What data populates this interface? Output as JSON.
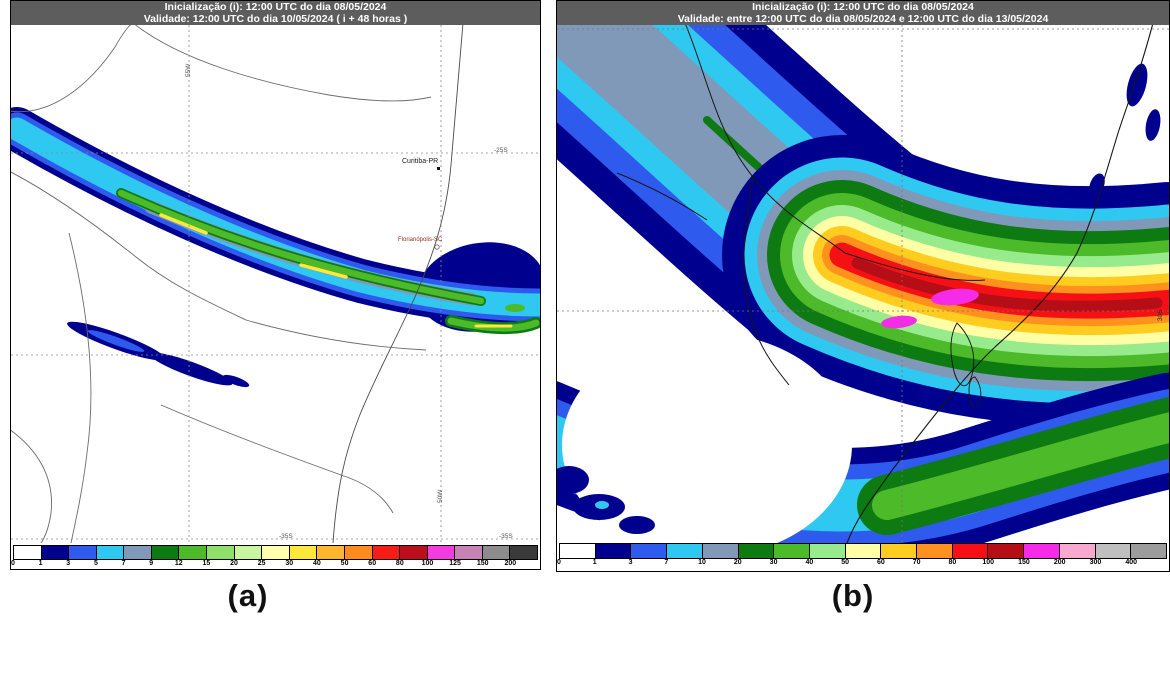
{
  "figure": {
    "panels": [
      {
        "id": "a",
        "caption": "(a)",
        "header": {
          "line1": "Inicialização (i): 12:00 UTC do dia 08/05/2024",
          "line2": "Validade: 12:00 UTC do dia 10/05/2024 ( i + 48 horas )"
        },
        "map_labels": {
          "city_curitiba": "Curitiba-PR",
          "city_florianopolis": "Florianópolis-SC",
          "lat_25s": "-25S",
          "lat_35s_left": "-35S",
          "lat_35s_right": "-35S",
          "lon_55w": "55W",
          "lon_50w": "50W"
        },
        "colorbar": {
          "ticks": [
            "0",
            "1",
            "3",
            "5",
            "7",
            "9",
            "12",
            "15",
            "20",
            "25",
            "30",
            "40",
            "50",
            "60",
            "80",
            "100",
            "125",
            "150",
            "200"
          ],
          "colors": [
            "#FFFFFF",
            "#00008F",
            "#2E5AEE",
            "#2FC8F0",
            "#8099B8",
            "#0E7A12",
            "#4DBA2A",
            "#8FE06A",
            "#C8F59E",
            "#FFFFB0",
            "#FFE83C",
            "#FFB52D",
            "#FF8A1E",
            "#F51D16",
            "#BC0F1D",
            "#F23CE0",
            "#C583B5",
            "#8C8C8C",
            "#3A3A3A"
          ]
        }
      },
      {
        "id": "b",
        "caption": "(b)",
        "header": {
          "line1": "Inicialização (i): 12:00 UTC do dia 08/05/2024",
          "line2": "Validade: entre 12:00 UTC do dia 08/05/2024 e 12:00 UTC do dia 13/05/2024"
        },
        "map_labels": {
          "lat_30s": "30S"
        },
        "colorbar": {
          "ticks": [
            "0",
            "1",
            "3",
            "7",
            "10",
            "20",
            "30",
            "40",
            "50",
            "60",
            "70",
            "80",
            "100",
            "150",
            "200",
            "300",
            "400"
          ],
          "colors": [
            "#FFFFFF",
            "#00008F",
            "#2E5AEE",
            "#2FC8F0",
            "#8099B8",
            "#0E7A12",
            "#4DBA2A",
            "#98EB8C",
            "#FFFFA6",
            "#FFCC1F",
            "#FF921E",
            "#F51016",
            "#B50E16",
            "#F52BE8",
            "#F9A8D0",
            "#BFBFBF",
            "#9C9C9C"
          ]
        }
      }
    ]
  },
  "chart_data": [
    {
      "type": "heatmap",
      "title": "Inicialização (i): 12:00 UTC do dia 08/05/2024 — Validade: 12:00 UTC do dia 10/05/2024 ( i + 48 horas )",
      "legend_bins": [
        0,
        1,
        3,
        5,
        7,
        9,
        12,
        15,
        20,
        25,
        30,
        40,
        50,
        60,
        80,
        100,
        125,
        150,
        200
      ],
      "legend_position": "bottom",
      "annotations": [
        "Curitiba-PR",
        "Florianópolis-SC",
        "-25S",
        "-35S",
        "55W",
        "50W"
      ]
    },
    {
      "type": "heatmap",
      "title": "Inicialização (i): 12:00 UTC do dia 08/05/2024 — Validade: entre 12:00 UTC do dia 08/05/2024 e 12:00 UTC do dia 13/05/2024",
      "legend_bins": [
        0,
        1,
        3,
        7,
        10,
        20,
        30,
        40,
        50,
        60,
        70,
        80,
        100,
        150,
        200,
        300,
        400
      ],
      "legend_position": "bottom",
      "annotations": [
        "30S"
      ]
    }
  ]
}
